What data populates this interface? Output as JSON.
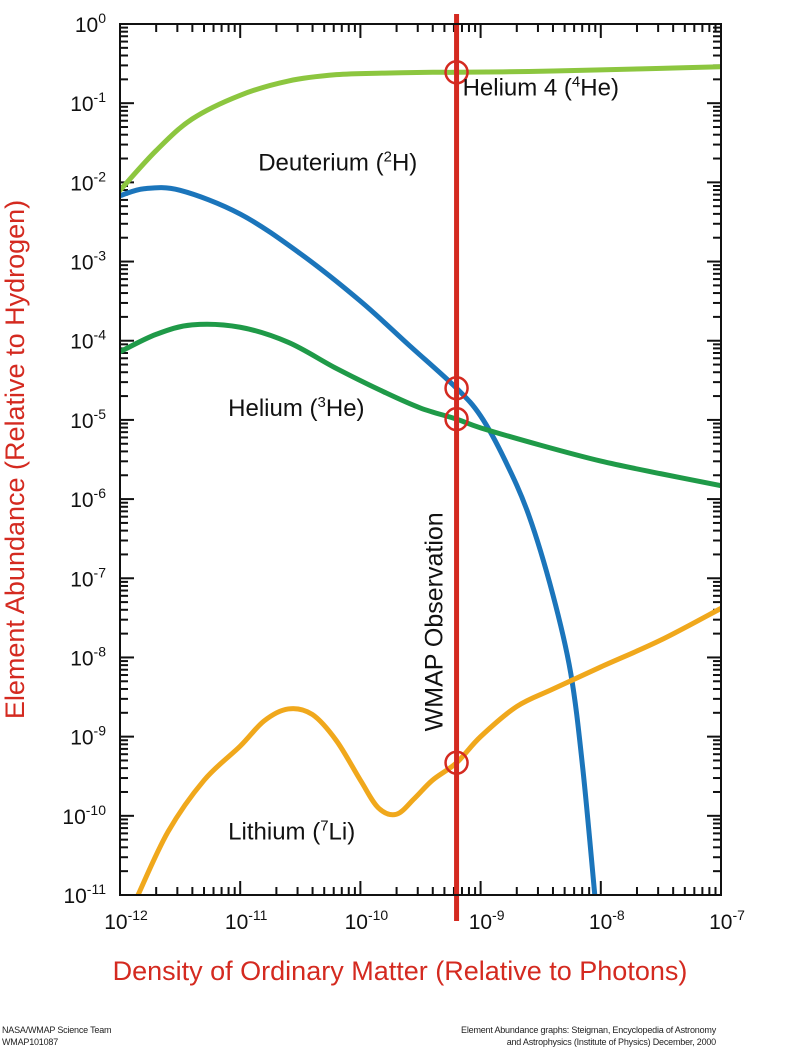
{
  "chart_data": {
    "type": "line",
    "title": "",
    "xlabel": "Density of Ordinary Matter (Relative to Photons)",
    "ylabel": "Element Abundance (Relative to Hydrogen)",
    "xscale": "log",
    "yscale": "log",
    "xlim": [
      1e-12,
      1e-07
    ],
    "ylim": [
      1e-11,
      1
    ],
    "grid": false,
    "x_ticks": [
      {
        "base": "10",
        "exp": "-12",
        "value": -12
      },
      {
        "base": "10",
        "exp": "-11",
        "value": -11
      },
      {
        "base": "10",
        "exp": "-10",
        "value": -10
      },
      {
        "base": "10",
        "exp": "-9",
        "value": -9
      },
      {
        "base": "10",
        "exp": "-8",
        "value": -8
      },
      {
        "base": "10",
        "exp": "-7",
        "value": -7
      }
    ],
    "y_ticks": [
      {
        "base": "10",
        "exp": "0",
        "value": 0
      },
      {
        "base": "10",
        "exp": "-1",
        "value": -1
      },
      {
        "base": "10",
        "exp": "-2",
        "value": -2
      },
      {
        "base": "10",
        "exp": "-3",
        "value": -3
      },
      {
        "base": "10",
        "exp": "-4",
        "value": -4
      },
      {
        "base": "10",
        "exp": "-5",
        "value": -5
      },
      {
        "base": "10",
        "exp": "-6",
        "value": -6
      },
      {
        "base": "10",
        "exp": "-7",
        "value": -7
      },
      {
        "base": "10",
        "exp": "-8",
        "value": -8
      },
      {
        "base": "10",
        "exp": "-9",
        "value": -9
      },
      {
        "base": "10",
        "exp": "-10",
        "value": -10
      },
      {
        "base": "10",
        "exp": "-11",
        "value": -11
      }
    ],
    "value_units": "log10",
    "series": [
      {
        "id": "helium4",
        "name": "Helium 4 (4He)",
        "label_parts": {
          "pre": "Helium 4 (",
          "sup": "4",
          "post": "He)"
        },
        "color": "#8cc63f",
        "log_x": [
          -12.0,
          -11.7,
          -11.4,
          -11.0,
          -10.6,
          -10.2,
          -9.8,
          -9.4,
          -9.2,
          -8.6,
          -8.0,
          -7.5,
          -7.0
        ],
        "log_y": [
          -2.1,
          -1.6,
          -1.2,
          -0.9,
          -0.72,
          -0.64,
          -0.62,
          -0.61,
          -0.61,
          -0.6,
          -0.58,
          -0.56,
          -0.54
        ]
      },
      {
        "id": "deuterium",
        "name": "Deuterium (2H)",
        "label_parts": {
          "pre": "Deuterium (",
          "sup": "2",
          "post": "H)"
        },
        "color": "#1b75bb",
        "log_x": [
          -12.0,
          -11.8,
          -11.5,
          -11.0,
          -10.5,
          -10.0,
          -9.6,
          -9.2,
          -9.0,
          -8.8,
          -8.6,
          -8.4,
          -8.25,
          -8.15,
          -8.05
        ],
        "log_y": [
          -2.17,
          -2.08,
          -2.1,
          -2.4,
          -2.9,
          -3.5,
          -4.05,
          -4.6,
          -4.95,
          -5.5,
          -6.2,
          -7.2,
          -8.2,
          -9.4,
          -11.0
        ]
      },
      {
        "id": "helium3",
        "name": "Helium (3He)",
        "label_parts": {
          "pre": "Helium (",
          "sup": "3",
          "post": "He)"
        },
        "color": "#1f9a48",
        "log_x": [
          -12.0,
          -11.7,
          -11.4,
          -11.0,
          -10.6,
          -10.2,
          -9.8,
          -9.5,
          -9.2,
          -9.0,
          -8.5,
          -8.0,
          -7.5,
          -7.0
        ],
        "log_y": [
          -4.14,
          -3.92,
          -3.8,
          -3.83,
          -4.02,
          -4.35,
          -4.65,
          -4.85,
          -4.99,
          -5.1,
          -5.32,
          -5.52,
          -5.68,
          -5.83
        ]
      },
      {
        "id": "lithium7",
        "name": "Lithium (7Li)",
        "label_parts": {
          "pre": "Lithium (",
          "sup": "7",
          "post": "Li)"
        },
        "color": "#f0a81c",
        "log_x": [
          -11.85,
          -11.6,
          -11.3,
          -11.0,
          -10.8,
          -10.6,
          -10.4,
          -10.2,
          -10.0,
          -9.85,
          -9.7,
          -9.55,
          -9.4,
          -9.2,
          -9.0,
          -8.7,
          -8.4,
          -8.0,
          -7.5,
          -7.0
        ],
        "log_y": [
          -11.0,
          -10.2,
          -9.55,
          -9.12,
          -8.8,
          -8.65,
          -8.72,
          -9.05,
          -9.55,
          -9.9,
          -9.98,
          -9.78,
          -9.55,
          -9.33,
          -9.0,
          -8.62,
          -8.4,
          -8.12,
          -7.78,
          -7.38
        ]
      }
    ],
    "annotations": {
      "observation": {
        "label": "WMAP Observation",
        "log_x": -9.2,
        "color": "#d42a20",
        "markers": [
          {
            "series": "helium4",
            "log_y": -0.61
          },
          {
            "series": "deuterium",
            "log_y": -4.6
          },
          {
            "series": "helium3",
            "log_y": -4.99
          },
          {
            "series": "lithium7",
            "log_y": -9.33
          }
        ]
      },
      "series_labels": [
        {
          "series": "helium4",
          "log_x": -9.15,
          "log_y": -0.9
        },
        {
          "series": "deuterium",
          "log_x": -10.85,
          "log_y": -1.85
        },
        {
          "series": "helium3",
          "log_x": -11.1,
          "log_y": -4.95
        },
        {
          "series": "lithium7",
          "log_x": -11.1,
          "log_y": -10.3
        }
      ]
    },
    "axis_label_color": "#d42a20"
  },
  "credits": {
    "left": [
      "NASA/WMAP Science Team",
      "WMAP101087"
    ],
    "right": [
      "Element Abundance graphs: Steigman, Encyclopedia of Astronomy",
      "and Astrophysics (Institute of Physics) December, 2000"
    ]
  }
}
